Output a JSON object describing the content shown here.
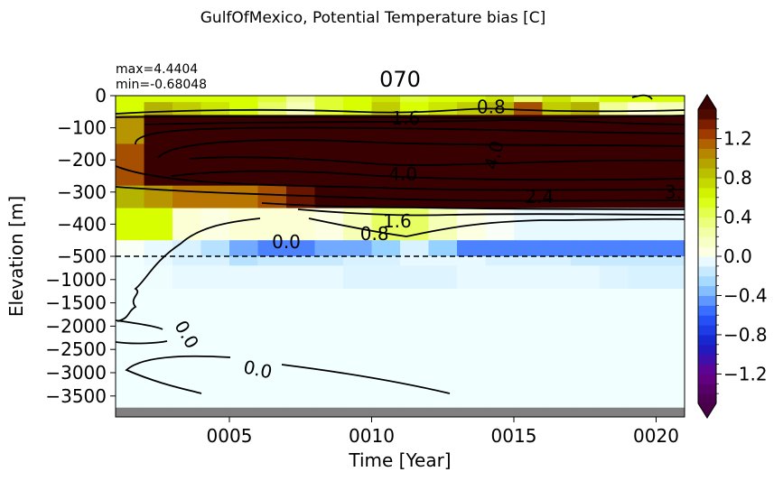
{
  "chart_data": {
    "type": "heatmap",
    "suptitle": "GulfOfMexico, Potential Temperature bias [C]",
    "title": "070",
    "stats": {
      "max": "max=4.4404",
      "min": "min=-0.68048"
    },
    "xlabel": "Time [Year]",
    "ylabel": "Elevation [m]",
    "x_range": [
      1,
      21
    ],
    "x_ticks": [
      {
        "value": 5,
        "label": "0005"
      },
      {
        "value": 10,
        "label": "0010"
      },
      {
        "value": 15,
        "label": "0015"
      },
      {
        "value": 20,
        "label": "0020"
      }
    ],
    "y_upper_ticks": [
      {
        "value": 0,
        "label": "0"
      },
      {
        "value": -100,
        "label": "−100"
      },
      {
        "value": -200,
        "label": "−200"
      },
      {
        "value": -300,
        "label": "−300"
      },
      {
        "value": -400,
        "label": "−400"
      },
      {
        "value": -500,
        "label": "−500"
      }
    ],
    "y_lower_ticks": [
      {
        "value": -1000,
        "label": "−1000"
      },
      {
        "value": -1500,
        "label": "−1500"
      },
      {
        "value": -2000,
        "label": "−2000"
      },
      {
        "value": -2500,
        "label": "−2500"
      },
      {
        "value": -3000,
        "label": "−3000"
      },
      {
        "value": -3500,
        "label": "−3500"
      }
    ],
    "y_break": -500,
    "y_bottom": -3950,
    "colorbar": {
      "vmin": -1.5,
      "vmax": 1.5,
      "ticks": [
        {
          "value": 1.2,
          "label": "1.2"
        },
        {
          "value": 0.8,
          "label": "0.8"
        },
        {
          "value": 0.4,
          "label": "0.4"
        },
        {
          "value": 0.0,
          "label": "0.0"
        },
        {
          "value": -0.4,
          "label": "−0.4"
        },
        {
          "value": -0.8,
          "label": "−0.8"
        },
        {
          "value": -1.2,
          "label": "−1.2"
        }
      ],
      "extend": "both"
    },
    "year_columns": [
      1.5,
      2.5,
      3.5,
      4.5,
      5.5,
      6.5,
      7.5,
      8.5,
      9.5,
      10.5,
      11.5,
      12.5,
      13.5,
      14.5,
      15.5,
      16.5,
      17.5,
      18.5,
      19.5,
      20.5
    ],
    "depth_rows": [
      {
        "top": 0,
        "bottom": -20,
        "values": [
          0.6,
          0.6,
          0.6,
          0.6,
          0.6,
          0.5,
          0.3,
          0.5,
          0.6,
          0.7,
          0.5,
          0.6,
          0.6,
          0.7,
          0.4,
          0.7,
          0.5,
          0.6,
          0.6,
          0.6
        ]
      },
      {
        "top": -20,
        "bottom": -60,
        "values": [
          0.6,
          0.9,
          0.8,
          0.7,
          0.6,
          0.4,
          0.2,
          0.5,
          0.6,
          0.8,
          0.6,
          0.7,
          0.8,
          0.9,
          1.2,
          0.8,
          0.9,
          0.3,
          0.1,
          0.2
        ]
      },
      {
        "top": -60,
        "bottom": -150,
        "values": [
          1.0,
          1.5,
          1.5,
          1.5,
          1.5,
          1.5,
          1.5,
          1.5,
          1.5,
          1.5,
          1.5,
          1.5,
          1.5,
          1.5,
          1.5,
          1.5,
          1.5,
          1.5,
          1.5,
          1.5
        ]
      },
      {
        "top": -150,
        "bottom": -280,
        "values": [
          1.2,
          1.5,
          1.5,
          1.5,
          1.5,
          1.5,
          1.5,
          1.5,
          1.5,
          1.5,
          1.5,
          1.5,
          1.5,
          1.5,
          1.5,
          1.5,
          1.5,
          1.5,
          1.5,
          1.5
        ]
      },
      {
        "top": -280,
        "bottom": -350,
        "values": [
          0.9,
          1.0,
          1.1,
          1.1,
          1.1,
          1.2,
          1.4,
          1.5,
          1.5,
          1.5,
          1.5,
          1.5,
          1.5,
          1.5,
          1.5,
          1.5,
          1.5,
          1.5,
          1.5,
          1.5
        ]
      },
      {
        "top": -350,
        "bottom": -450,
        "values": [
          0.6,
          0.6,
          0.1,
          0.05,
          0.1,
          0.1,
          0.1,
          0.05,
          0.2,
          0.4,
          0.4,
          0.2,
          0.05,
          0.0,
          -0.05,
          -0.05,
          -0.05,
          -0.05,
          -0.05,
          -0.05
        ]
      },
      {
        "top": -450,
        "bottom": -500,
        "values": [
          0.0,
          -0.05,
          -0.1,
          -0.2,
          -0.4,
          -0.5,
          -0.5,
          -0.4,
          -0.4,
          -0.3,
          -0.1,
          -0.3,
          -0.5,
          -0.5,
          -0.5,
          -0.5,
          -0.5,
          -0.5,
          -0.5,
          -0.5
        ]
      },
      {
        "top": -500,
        "bottom": -700,
        "values": [
          -0.02,
          -0.05,
          -0.1,
          -0.1,
          -0.2,
          -0.15,
          -0.15,
          -0.15,
          -0.1,
          -0.1,
          -0.05,
          -0.05,
          -0.05,
          -0.1,
          -0.1,
          -0.1,
          -0.15,
          -0.15,
          -0.15,
          -0.15
        ]
      },
      {
        "top": -700,
        "bottom": -1200,
        "values": [
          -0.02,
          -0.03,
          -0.05,
          -0.05,
          -0.05,
          -0.05,
          -0.05,
          -0.05,
          -0.08,
          -0.08,
          -0.08,
          -0.08,
          -0.05,
          -0.05,
          -0.05,
          -0.05,
          -0.05,
          -0.08,
          -0.1,
          -0.1
        ]
      },
      {
        "top": -1200,
        "bottom": -3750,
        "values": [
          -0.02,
          -0.02,
          -0.02,
          -0.02,
          -0.02,
          -0.02,
          -0.02,
          -0.02,
          -0.02,
          -0.02,
          -0.02,
          -0.02,
          -0.02,
          -0.02,
          -0.02,
          -0.02,
          -0.02,
          -0.02,
          -0.02,
          -0.02
        ]
      },
      {
        "top": -3750,
        "bottom": -3950,
        "values": [
          null,
          null,
          null,
          null,
          null,
          null,
          null,
          null,
          null,
          null,
          null,
          null,
          null,
          null,
          null,
          null,
          null,
          null,
          null,
          null
        ]
      }
    ],
    "contour_labels": [
      {
        "text": "0.8",
        "x": 14.2,
        "y": -35,
        "rot": 0
      },
      {
        "text": "1.6",
        "x": 11.2,
        "y": -70,
        "rot": 0
      },
      {
        "text": "4.0",
        "x": 14.3,
        "y": -185,
        "rot": -75
      },
      {
        "text": "4.0",
        "x": 11.1,
        "y": -245,
        "rot": 0
      },
      {
        "text": "2.4",
        "x": 15.9,
        "y": -315,
        "rot": 0
      },
      {
        "text": "3.",
        "x": 20.6,
        "y": -300,
        "rot": 0
      },
      {
        "text": "1.6",
        "x": 10.9,
        "y": -390,
        "rot": 0
      },
      {
        "text": "0.8",
        "x": 10.1,
        "y": -430,
        "rot": 0
      },
      {
        "text": "0.0",
        "x": 7.0,
        "y": -455,
        "rot": 0
      },
      {
        "text": "0.0",
        "x": 3.5,
        "y": -2180,
        "rot": 60
      },
      {
        "text": "0.0",
        "x": 6.0,
        "y": -2930,
        "rot": 12
      }
    ]
  }
}
